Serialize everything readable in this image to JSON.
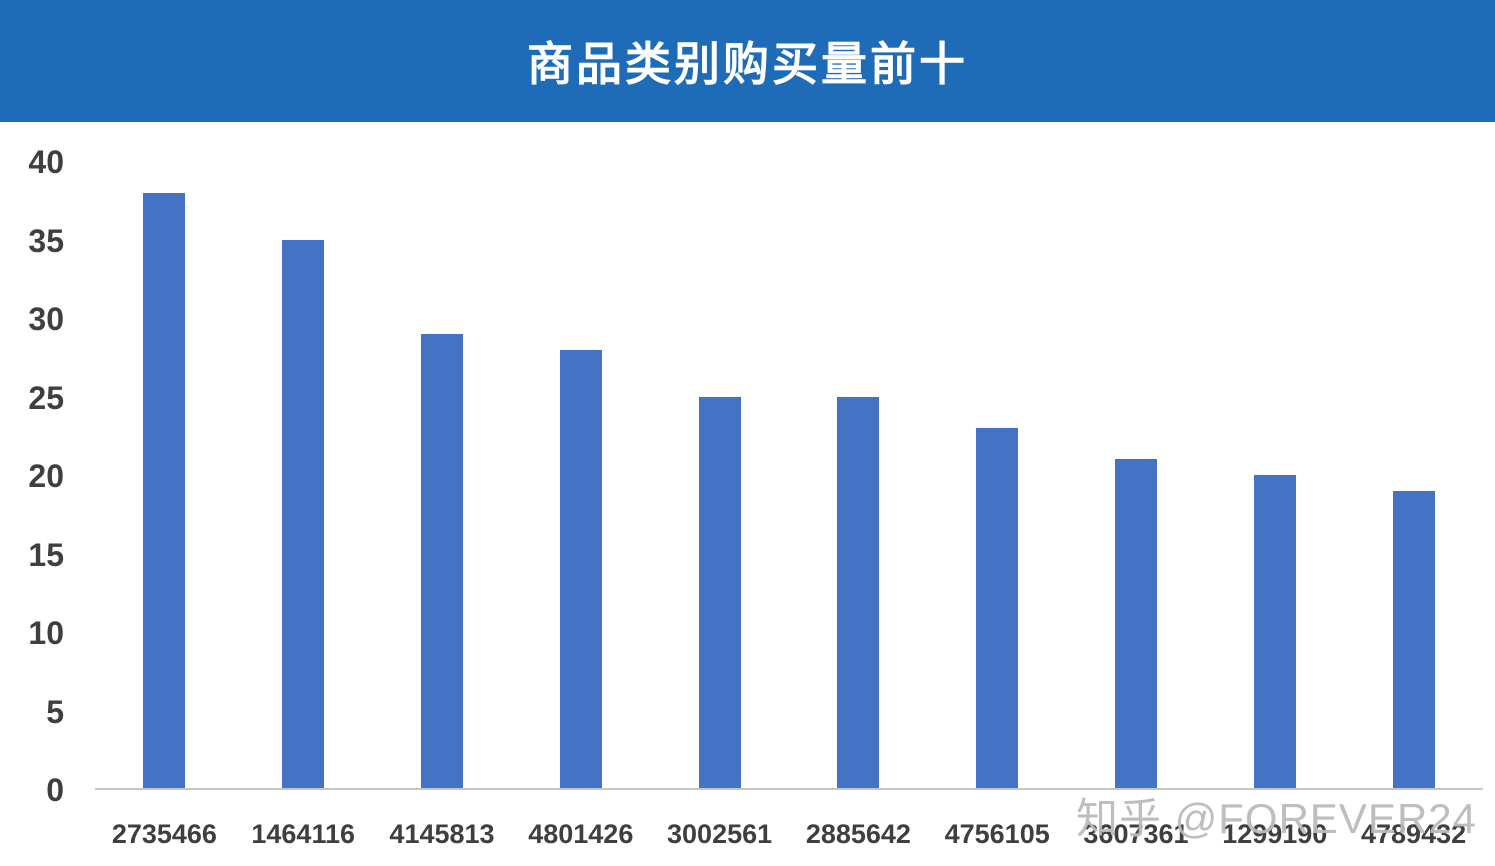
{
  "header": {
    "title": "商品类别购买量前十",
    "bg_color": "#1E6BB7"
  },
  "chart_data": {
    "type": "bar",
    "title": "商品类别购买量前十",
    "categories": [
      "2735466",
      "1464116",
      "4145813",
      "4801426",
      "3002561",
      "2885642",
      "4756105",
      "3607361",
      "1299190",
      "4789432"
    ],
    "values": [
      38,
      35,
      29,
      28,
      25,
      25,
      23,
      21,
      20,
      19
    ],
    "xlabel": "",
    "ylabel": "",
    "ylim": [
      0,
      40
    ],
    "ytick_interval": 5,
    "ytick_labels": [
      "0",
      "5",
      "10",
      "15",
      "20",
      "25",
      "30",
      "35",
      "40"
    ],
    "bar_color": "#4472C4",
    "grid": false,
    "legend_position": "none"
  },
  "watermark": {
    "text": "知乎 @FOREVER24"
  }
}
